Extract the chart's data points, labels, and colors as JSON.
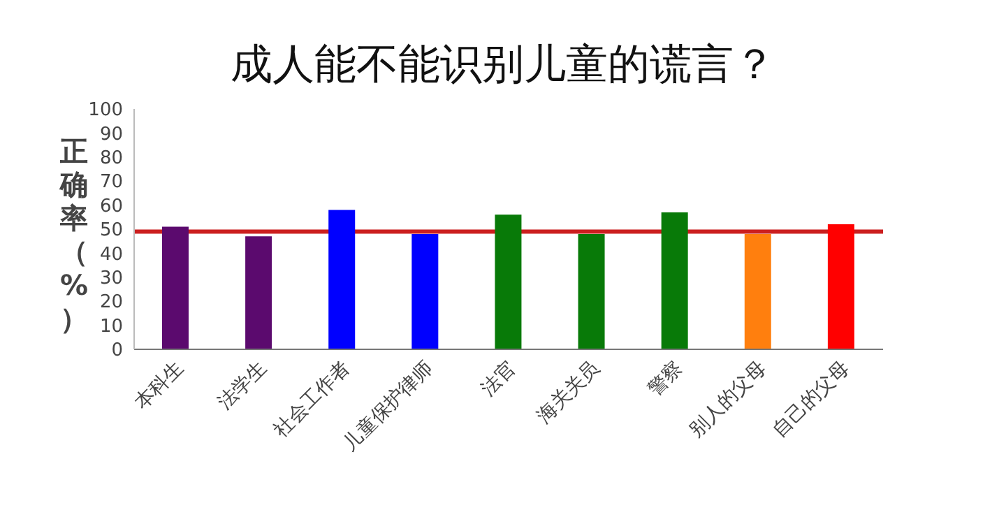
{
  "chart_data": {
    "type": "bar",
    "title": "成人能不能识别儿童的谎言？",
    "ylabel": "正确率（%）",
    "categories": [
      "本科生",
      "法学生",
      "社会工作者",
      "儿童保护律师",
      "法官",
      "海关关员",
      "警察",
      "别人的父母",
      "自己的父母"
    ],
    "values": [
      51,
      47,
      58,
      48,
      56,
      48,
      57,
      48,
      52
    ],
    "colors": [
      "#5b0a6e",
      "#5b0a6e",
      "#0000ff",
      "#0000ff",
      "#087a08",
      "#087a08",
      "#087a08",
      "#ff7f0e",
      "#ff0000"
    ],
    "ylim": [
      0,
      100
    ],
    "yticks": [
      0,
      10,
      20,
      30,
      40,
      50,
      60,
      70,
      80,
      90,
      100
    ],
    "grid": false,
    "legend": false,
    "ref_lines": [
      {
        "axis": "y",
        "value": 49,
        "color": "#cc1f1f"
      }
    ]
  }
}
